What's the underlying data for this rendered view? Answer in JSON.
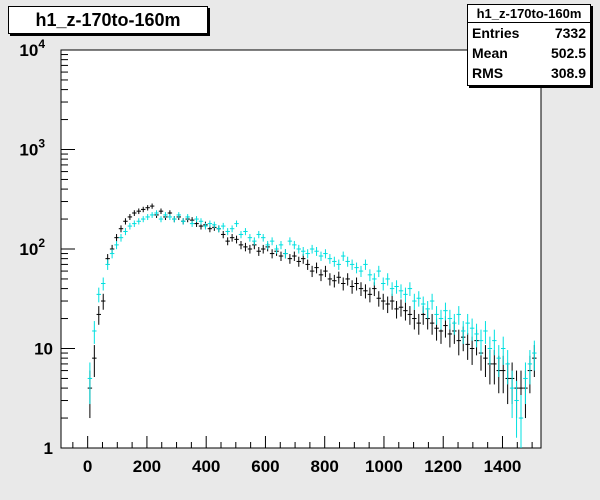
{
  "histogram": {
    "title": "h1_z-170to-160m"
  },
  "stats": {
    "title": "h1_z-170to-160m",
    "rows": [
      {
        "label": "Entries",
        "value": "7332"
      },
      {
        "label": "Mean",
        "value": "502.5"
      },
      {
        "label": "RMS",
        "value": "308.9"
      }
    ]
  },
  "colors": {
    "frame_bg": "#e9e9e9",
    "plot_bg": "#ffffff",
    "series_black": "#000000",
    "series_cyan": "#00e0e0"
  },
  "chart_data": {
    "type": "scatter",
    "title": "h1_z-170to-160m",
    "xlabel": "",
    "ylabel": "",
    "xlim": [
      -90,
      1530
    ],
    "ylim": [
      1,
      10000
    ],
    "yscale": "log",
    "grid": false,
    "x_ticks": [
      0,
      200,
      400,
      600,
      800,
      1000,
      1200,
      1400
    ],
    "y_ticks": [
      {
        "value": 1,
        "base": "1",
        "exp": ""
      },
      {
        "value": 10,
        "base": "10",
        "exp": ""
      },
      {
        "value": 100,
        "base": "10",
        "exp": "2"
      },
      {
        "value": 1000,
        "base": "10",
        "exp": "3"
      },
      {
        "value": 10000,
        "base": "10",
        "exp": "4"
      }
    ],
    "bin_width": 15,
    "series": [
      {
        "color": "#000000",
        "x": [
          7.5,
          22.5,
          37.5,
          52.5,
          67.5,
          82.5,
          97.5,
          112.5,
          127.5,
          142.5,
          157.5,
          172.5,
          187.5,
          202.5,
          217.5,
          232.5,
          247.5,
          262.5,
          277.5,
          292.5,
          307.5,
          322.5,
          337.5,
          352.5,
          367.5,
          382.5,
          397.5,
          412.5,
          427.5,
          442.5,
          457.5,
          472.5,
          487.5,
          502.5,
          517.5,
          532.5,
          547.5,
          562.5,
          577.5,
          592.5,
          607.5,
          622.5,
          637.5,
          652.5,
          667.5,
          682.5,
          697.5,
          712.5,
          727.5,
          742.5,
          757.5,
          772.5,
          787.5,
          802.5,
          817.5,
          832.5,
          847.5,
          862.5,
          877.5,
          892.5,
          907.5,
          922.5,
          937.5,
          952.5,
          967.5,
          982.5,
          997.5,
          1012.5,
          1027.5,
          1042.5,
          1057.5,
          1072.5,
          1087.5,
          1102.5,
          1117.5,
          1132.5,
          1147.5,
          1162.5,
          1177.5,
          1192.5,
          1207.5,
          1222.5,
          1237.5,
          1252.5,
          1267.5,
          1282.5,
          1297.5,
          1312.5,
          1327.5,
          1342.5,
          1357.5,
          1372.5,
          1387.5,
          1402.5,
          1417.5,
          1432.5,
          1447.5,
          1462.5,
          1477.5,
          1492.5,
          1507.5
        ],
        "y": [
          4,
          8,
          22,
          30,
          80,
          100,
          130,
          160,
          190,
          210,
          230,
          240,
          250,
          260,
          270,
          220,
          240,
          210,
          230,
          200,
          210,
          190,
          200,
          195,
          180,
          170,
          175,
          160,
          165,
          160,
          140,
          120,
          130,
          125,
          110,
          105,
          100,
          110,
          95,
          100,
          105,
          90,
          95,
          85,
          90,
          80,
          85,
          75,
          80,
          70,
          60,
          65,
          55,
          60,
          50,
          48,
          52,
          45,
          50,
          42,
          45,
          40,
          38,
          35,
          40,
          32,
          30,
          28,
          30,
          25,
          26,
          24,
          22,
          20,
          18,
          22,
          20,
          18,
          16,
          15,
          17,
          14,
          15,
          12,
          13,
          11,
          10,
          12,
          9,
          8,
          7,
          7,
          6,
          6,
          5,
          5,
          4,
          4,
          4,
          6,
          8
        ]
      },
      {
        "color": "#00e0e0",
        "x": [
          7.5,
          22.5,
          37.5,
          52.5,
          67.5,
          82.5,
          97.5,
          112.5,
          127.5,
          142.5,
          157.5,
          172.5,
          187.5,
          202.5,
          217.5,
          232.5,
          247.5,
          262.5,
          277.5,
          292.5,
          307.5,
          322.5,
          337.5,
          352.5,
          367.5,
          382.5,
          397.5,
          412.5,
          427.5,
          442.5,
          457.5,
          472.5,
          487.5,
          502.5,
          517.5,
          532.5,
          547.5,
          562.5,
          577.5,
          592.5,
          607.5,
          622.5,
          637.5,
          652.5,
          667.5,
          682.5,
          697.5,
          712.5,
          727.5,
          742.5,
          757.5,
          772.5,
          787.5,
          802.5,
          817.5,
          832.5,
          847.5,
          862.5,
          877.5,
          892.5,
          907.5,
          922.5,
          937.5,
          952.5,
          967.5,
          982.5,
          997.5,
          1012.5,
          1027.5,
          1042.5,
          1057.5,
          1072.5,
          1087.5,
          1102.5,
          1117.5,
          1132.5,
          1147.5,
          1162.5,
          1177.5,
          1192.5,
          1207.5,
          1222.5,
          1237.5,
          1252.5,
          1267.5,
          1282.5,
          1297.5,
          1312.5,
          1327.5,
          1342.5,
          1357.5,
          1372.5,
          1387.5,
          1402.5,
          1417.5,
          1432.5,
          1447.5,
          1462.5,
          1477.5,
          1492.5,
          1507.5
        ],
        "y": [
          5,
          15,
          35,
          45,
          70,
          90,
          110,
          130,
          150,
          170,
          180,
          190,
          200,
          210,
          220,
          230,
          200,
          220,
          210,
          200,
          220,
          190,
          210,
          180,
          200,
          190,
          170,
          180,
          175,
          160,
          170,
          150,
          160,
          180,
          140,
          150,
          130,
          120,
          140,
          130,
          110,
          120,
          100,
          110,
          90,
          120,
          110,
          100,
          95,
          90,
          100,
          95,
          85,
          90,
          80,
          75,
          70,
          85,
          75,
          70,
          65,
          60,
          70,
          55,
          50,
          60,
          45,
          50,
          40,
          42,
          38,
          35,
          40,
          30,
          32,
          28,
          25,
          30,
          22,
          20,
          24,
          20,
          18,
          22,
          15,
          18,
          16,
          14,
          12,
          15,
          10,
          12,
          8,
          10,
          7,
          4,
          3,
          2,
          5,
          7,
          9
        ]
      }
    ]
  }
}
